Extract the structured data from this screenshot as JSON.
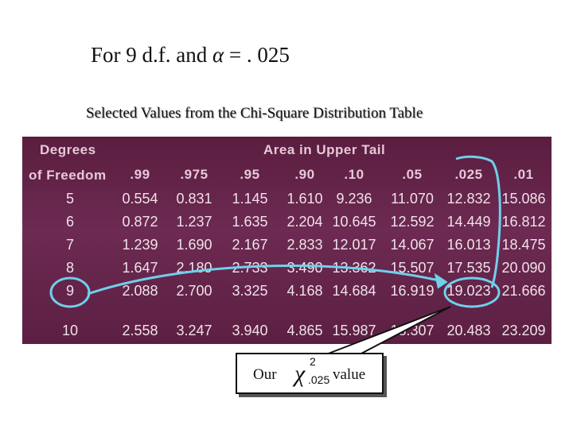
{
  "heading": {
    "prefix": "For 9 d.f. and ",
    "alpha": "α",
    "suffix": " = . 025"
  },
  "subtitle": "Selected Values from the Chi-Square Distribution Table",
  "table": {
    "header_degrees": "Degrees",
    "header_freedom": "of Freedom",
    "header_area": "Area in Upper Tail",
    "columns": [
      ".99",
      ".975",
      ".95",
      ".90",
      ".10",
      ".05",
      ".025",
      ".01"
    ],
    "rows": [
      {
        "df": "5",
        "values": [
          "0.554",
          "0.831",
          "1.145",
          "1.610",
          "9.236",
          "11.070",
          "12.832",
          "15.086"
        ]
      },
      {
        "df": "6",
        "values": [
          "0.872",
          "1.237",
          "1.635",
          "2.204",
          "10.645",
          "12.592",
          "14.449",
          "16.812"
        ]
      },
      {
        "df": "7",
        "values": [
          "1.239",
          "1.690",
          "2.167",
          "2.833",
          "12.017",
          "14.067",
          "16.013",
          "18.475"
        ]
      },
      {
        "df": "8",
        "values": [
          "1.647",
          "2.180",
          "2.733",
          "3.490",
          "13.362",
          "15.507",
          "17.535",
          "20.090"
        ]
      },
      {
        "df": "9",
        "values": [
          "2.088",
          "2.700",
          "3.325",
          "4.168",
          "14.684",
          "16.919",
          "19.023",
          "21.666"
        ]
      },
      {
        "df": "10",
        "values": [
          "2.558",
          "3.247",
          "3.940",
          "4.865",
          "15.987",
          "18.307",
          "20.483",
          "23.209"
        ]
      }
    ],
    "highlight_color": "#6fd0ea"
  },
  "callout": {
    "prefix": "Our",
    "chi": "χ",
    "sup": "2",
    "sub": ".025",
    "suffix": "value"
  }
}
